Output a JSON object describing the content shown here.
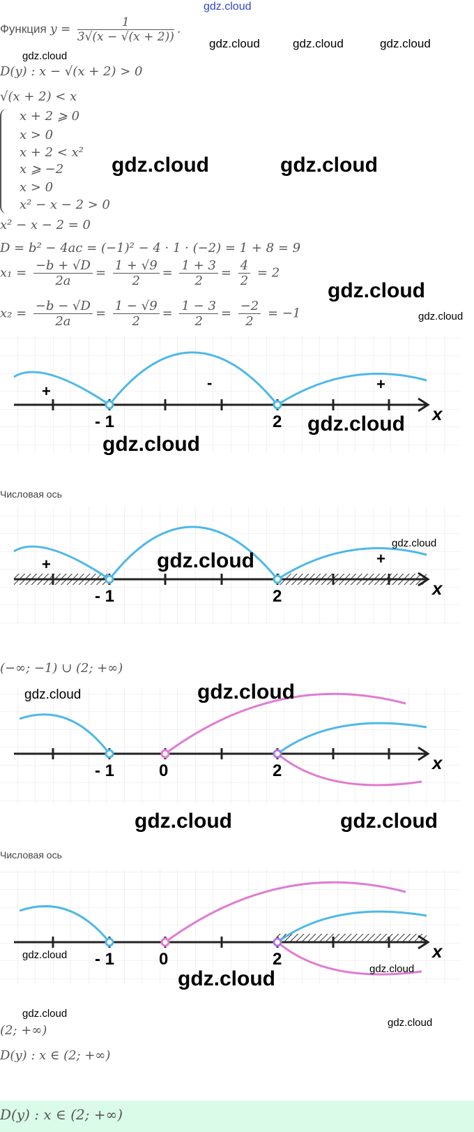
{
  "header": {
    "site": "gdz.cloud"
  },
  "watermark": "gdz.cloud",
  "lines": {
    "func_label": "Функция",
    "func_lhs": "y =",
    "func_num": "1",
    "func_den": "3√(x − √(x + 2))",
    "dom1": "D(y) :  x − √(x + 2)  >  0",
    "ineq": "√(x + 2)  <  x",
    "sys1": [
      "x + 2  ⩾  0",
      "x  >  0",
      "x + 2  <  x²"
    ],
    "sys2": [
      "x  ⩾  −2",
      "x  >  0",
      "x² − x − 2  >  0"
    ],
    "eq": "x² − x − 2 = 0",
    "disc": "D = b² − 4ac = (−1)² − 4 · 1 · (−2) = 1 + 8 = 9",
    "x1": {
      "lhs": "x₁ =",
      "f1n": "−b + √D",
      "f1d": "2a",
      "f2n": "1 + √9",
      "f2d": "2",
      "f3n": "1 + 3",
      "f3d": "2",
      "f4n": "4",
      "f4d": "2",
      "res": "= 2"
    },
    "x2": {
      "lhs": "x₂ =",
      "f1n": "−b − √D",
      "f1d": "2a",
      "f2n": "1 − √9",
      "f2d": "2",
      "f3n": "1 − 3",
      "f3d": "2",
      "f4n": "−2",
      "f4d": "2",
      "res": "= −1"
    }
  },
  "diagrams": {
    "caption": "Числовая ось",
    "axis_label": "x",
    "pt_m1": "- 1",
    "pt_0": "0",
    "pt_2": "2",
    "plus": "+",
    "minus": "-",
    "blue": "#4db8e8",
    "pink": "#e07bd0",
    "purple": "#a77be8"
  },
  "result1": "(−∞; −1) ∪ (2; +∞)",
  "result2": "(2; +∞)",
  "domain": "D(y) :  x ∈ (2; +∞)",
  "answer": "D(y) :  x ∈ (2; +∞)",
  "answer_bg": "#dafbe8"
}
